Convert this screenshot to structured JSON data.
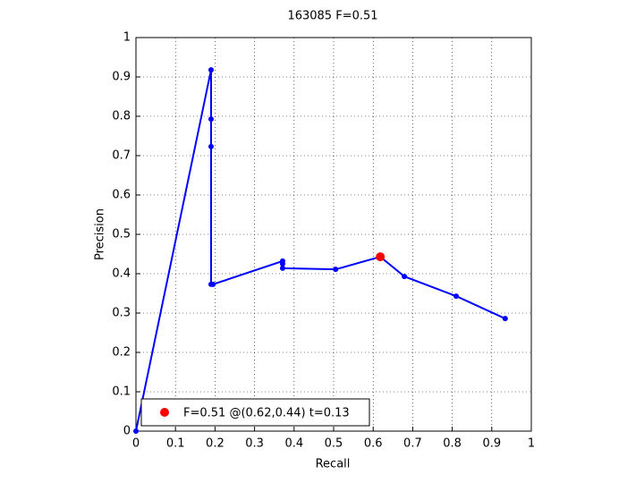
{
  "chart_data": {
    "type": "line",
    "title": "163085 F=0.51",
    "xlabel": "Recall",
    "ylabel": "Precision",
    "series": [
      {
        "color": "#0000ff",
        "line": true,
        "x": [
          0,
          0.19,
          0.19,
          0.19,
          0.19,
          0.195,
          0.371,
          0.371,
          0.371,
          0.505,
          0.618,
          0.679,
          0.81,
          0.934
        ],
        "values": [
          0,
          0.918,
          0.793,
          0.723,
          0.373,
          0.373,
          0.432,
          0.425,
          0.414,
          0.411,
          0.443,
          0.393,
          0.343,
          0.286
        ]
      },
      {
        "name": "F=0.51 @(0.62,0.44) t=0.13",
        "color": "#ff0000",
        "line": false,
        "x": [
          0.618
        ],
        "values": [
          0.443
        ]
      }
    ],
    "xlim": [
      0,
      1
    ],
    "ylim": [
      0,
      1
    ],
    "xticks": [
      0,
      0.1,
      0.2,
      0.3,
      0.4,
      0.5,
      0.6,
      0.7,
      0.8,
      0.9,
      1
    ],
    "yticks": [
      0,
      0.1,
      0.2,
      0.3,
      0.4,
      0.5,
      0.6,
      0.7,
      0.8,
      0.9,
      1
    ],
    "grid": true,
    "legend": "lower left"
  }
}
